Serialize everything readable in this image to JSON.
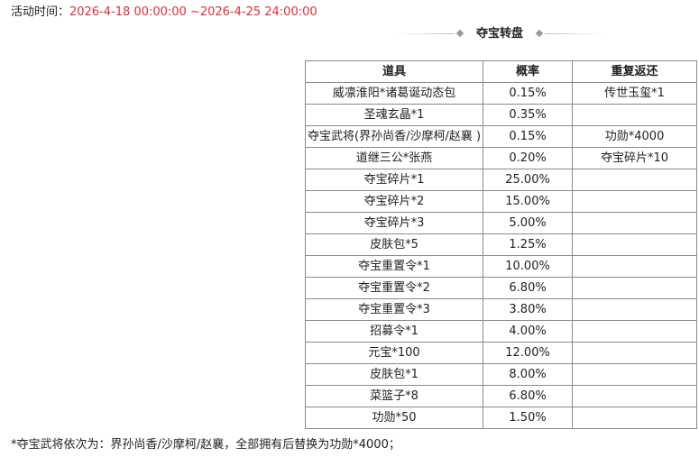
{
  "event": {
    "time_label": "活动时间：",
    "time_value": "2026-4-18 00:00:00 ~2026-4-25 24:00:00"
  },
  "section": {
    "title": "夺宝转盘"
  },
  "table": {
    "headers": [
      "道具",
      "概率",
      "重复返还"
    ],
    "rows": [
      {
        "item": "威凛淮阳*诸葛诞动态包",
        "prob": "0.15%",
        "refund": "传世玉玺*1"
      },
      {
        "item": "圣魂玄晶*1",
        "prob": "0.35%",
        "refund": ""
      },
      {
        "item": "夺宝武将(界孙尚香/沙摩柯/赵襄 )",
        "prob": "0.15%",
        "refund": "功勋*4000"
      },
      {
        "item": "道继三公*张燕",
        "prob": "0.20%",
        "refund": "夺宝碎片*10"
      },
      {
        "item": "夺宝碎片*1",
        "prob": "25.00%",
        "refund": ""
      },
      {
        "item": "夺宝碎片*2",
        "prob": "15.00%",
        "refund": ""
      },
      {
        "item": "夺宝碎片*3",
        "prob": "5.00%",
        "refund": ""
      },
      {
        "item": "皮肤包*5",
        "prob": "1.25%",
        "refund": ""
      },
      {
        "item": "夺宝重置令*1",
        "prob": "10.00%",
        "refund": ""
      },
      {
        "item": "夺宝重置令*2",
        "prob": "6.80%",
        "refund": ""
      },
      {
        "item": "夺宝重置令*3",
        "prob": "3.80%",
        "refund": ""
      },
      {
        "item": "招募令*1",
        "prob": "4.00%",
        "refund": ""
      },
      {
        "item": "元宝*100",
        "prob": "12.00%",
        "refund": ""
      },
      {
        "item": "皮肤包*1",
        "prob": "8.00%",
        "refund": ""
      },
      {
        "item": "菜篮子*8",
        "prob": "6.80%",
        "refund": ""
      },
      {
        "item": "功勋*50",
        "prob": "1.50%",
        "refund": ""
      }
    ]
  },
  "footnote": "*夺宝武将依次为：界孙尚香/沙摩柯/赵襄，全部拥有后替换为功勋*4000；",
  "colors": {
    "time_value": "#e0303a",
    "border": "#8a8a8a",
    "text": "#222222"
  }
}
